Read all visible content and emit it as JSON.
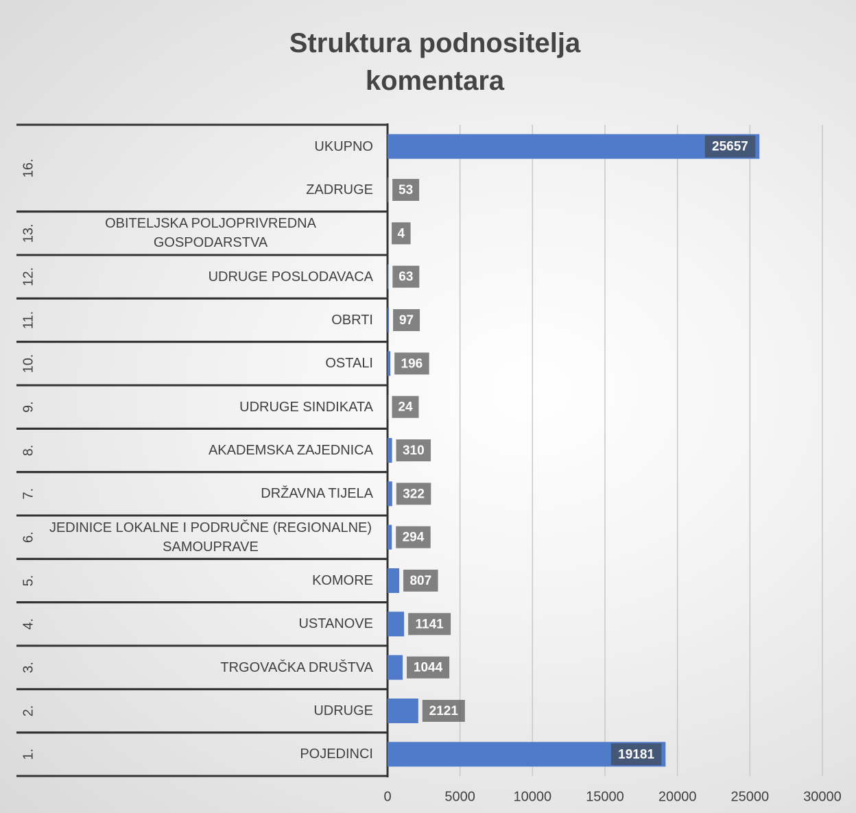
{
  "chart_data": {
    "type": "bar",
    "orientation": "horizontal",
    "title": "Struktura podnositelja komentara",
    "categories": [
      "POJEDINCI",
      "UDRUGE",
      "TRGOVAČKA DRUŠTVA",
      "USTANOVE",
      "KOMORE",
      "JEDINICE LOKALNE I PODRUČNE (REGIONALNE) SAMOUPRAVE",
      "DRŽAVNA TIJELA",
      "AKADEMSKA ZAJEDNICA",
      "UDRUGE SINDIKATA",
      "OSTALI",
      "OBRTI",
      "UDRUGE POSLODAVACA",
      "OBITELJSKA POLJOPRIVREDNA GOSPODARSTVA",
      "ZADRUGE",
      "UKUPNO"
    ],
    "group_labels": [
      "1.",
      "2.",
      "3.",
      "4.",
      "5.",
      "6.",
      "7.",
      "8.",
      "9.",
      "10.",
      "11.",
      "12.",
      "13.",
      "16.",
      null
    ],
    "values": [
      19181,
      2121,
      1044,
      1141,
      807,
      294,
      322,
      310,
      24,
      196,
      97,
      63,
      4,
      53,
      25657
    ],
    "color": "#4f7bca",
    "xlim": [
      0,
      30000
    ],
    "xticks": [
      0,
      5000,
      10000,
      15000,
      20000,
      25000,
      30000
    ],
    "grid": true
  }
}
